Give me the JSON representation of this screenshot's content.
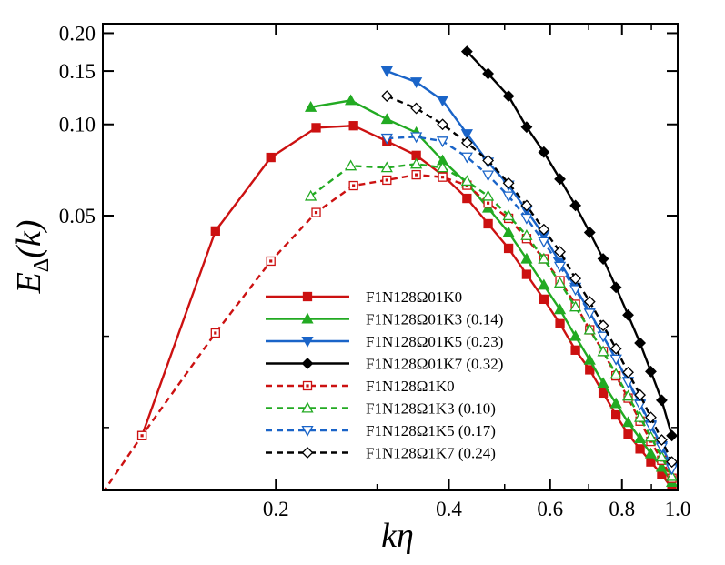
{
  "chart_data": {
    "type": "line",
    "title": "",
    "xlabel": "kη",
    "ylabel": "E_Δ(k)",
    "x_scale": "log",
    "y_scale": "log",
    "xlim": [
      0.1,
      1.0
    ],
    "ylim": [
      0.0062,
      0.215
    ],
    "x_ticks": [
      {
        "value": 0.2,
        "label": "0.2"
      },
      {
        "value": 0.4,
        "label": "0.4"
      },
      {
        "value": 0.6,
        "label": "0.6"
      },
      {
        "value": 0.8,
        "label": "0.8"
      },
      {
        "value": 1.0,
        "label": "1.0"
      }
    ],
    "x_minor_ticks": [
      0.3,
      0.5,
      0.7,
      0.9
    ],
    "y_ticks": [
      {
        "value": 0.05,
        "label": "0.05"
      },
      {
        "value": 0.1,
        "label": "0.10"
      },
      {
        "value": 0.15,
        "label": "0.15"
      },
      {
        "value": 0.2,
        "label": "0.20"
      }
    ],
    "y_minor_ticks": [
      0.02,
      0.01
    ],
    "grid": false,
    "legend_position": "lower-center",
    "series": [
      {
        "name": "F1N128Ω01K0",
        "color": "#cc1111",
        "dash": "solid",
        "marker": "square-filled",
        "x": [
          0.117,
          0.157,
          0.196,
          0.235,
          0.273,
          0.312,
          0.351,
          0.39,
          0.43,
          0.468,
          0.508,
          0.546,
          0.585,
          0.624,
          0.664,
          0.703,
          0.742,
          0.781,
          0.82,
          0.86,
          0.898,
          0.938,
          0.977
        ],
        "y": [
          0.0094,
          0.0445,
          0.0778,
          0.0975,
          0.099,
          0.088,
          0.079,
          0.068,
          0.057,
          0.047,
          0.039,
          0.032,
          0.0265,
          0.022,
          0.018,
          0.0155,
          0.013,
          0.011,
          0.0095,
          0.0085,
          0.0077,
          0.007,
          0.0063
        ]
      },
      {
        "name": "F1N128Ω01K3 (0.14)",
        "color": "#22aa22",
        "dash": "solid",
        "marker": "triangle-up-filled",
        "x": [
          0.23,
          0.27,
          0.312,
          0.351,
          0.39,
          0.43,
          0.468,
          0.508,
          0.546,
          0.585,
          0.624,
          0.664,
          0.703,
          0.742,
          0.781,
          0.82,
          0.86,
          0.898,
          0.938,
          0.977
        ],
        "y": [
          0.114,
          0.12,
          0.104,
          0.094,
          0.076,
          0.064,
          0.053,
          0.044,
          0.036,
          0.0295,
          0.0245,
          0.02,
          0.0167,
          0.014,
          0.012,
          0.0104,
          0.0092,
          0.0082,
          0.0074,
          0.0066
        ]
      },
      {
        "name": "F1N128Ω01K5 (0.23)",
        "color": "#1a64c8",
        "dash": "solid",
        "marker": "triangle-down-filled",
        "x": [
          0.312,
          0.351,
          0.39,
          0.43,
          0.468,
          0.508,
          0.546,
          0.585,
          0.624,
          0.664,
          0.703,
          0.742,
          0.781,
          0.82,
          0.86,
          0.898,
          0.938,
          0.977
        ],
        "y": [
          0.15,
          0.138,
          0.12,
          0.093,
          0.075,
          0.063,
          0.052,
          0.043,
          0.035,
          0.029,
          0.024,
          0.02,
          0.0168,
          0.0142,
          0.012,
          0.0102,
          0.0087,
          0.0074
        ]
      },
      {
        "name": "F1N128Ω01K7 (0.32)",
        "color": "#000000",
        "dash": "solid",
        "marker": "diamond-filled",
        "x": [
          0.43,
          0.468,
          0.508,
          0.546,
          0.585,
          0.624,
          0.664,
          0.703,
          0.742,
          0.781,
          0.82,
          0.86,
          0.898,
          0.938,
          0.977
        ],
        "y": [
          0.174,
          0.147,
          0.124,
          0.098,
          0.081,
          0.066,
          0.054,
          0.044,
          0.036,
          0.029,
          0.0235,
          0.019,
          0.0153,
          0.0123,
          0.0094
        ]
      },
      {
        "name": "F1N128Ω1K0",
        "color": "#cc1111",
        "dash": "dashed",
        "marker": "square-open",
        "x": [
          0.1,
          0.117,
          0.157,
          0.196,
          0.235,
          0.273,
          0.312,
          0.351,
          0.39,
          0.43,
          0.468,
          0.508,
          0.546,
          0.585,
          0.624,
          0.664,
          0.703,
          0.742,
          0.781,
          0.82,
          0.86,
          0.898,
          0.938,
          0.977
        ],
        "y": [
          0.0061,
          0.0094,
          0.0205,
          0.0354,
          0.0512,
          0.0628,
          0.0655,
          0.0682,
          0.067,
          0.063,
          0.055,
          0.049,
          0.042,
          0.036,
          0.0305,
          0.0255,
          0.021,
          0.0178,
          0.0148,
          0.0125,
          0.0105,
          0.009,
          0.0078,
          0.0068
        ]
      },
      {
        "name": "F1N128Ω1K3 (0.10)",
        "color": "#22aa22",
        "dash": "dashed",
        "marker": "triangle-up-open",
        "x": [
          0.23,
          0.27,
          0.312,
          0.351,
          0.39,
          0.43,
          0.468,
          0.508,
          0.546,
          0.585,
          0.624,
          0.664,
          0.703,
          0.742,
          0.781,
          0.82,
          0.86,
          0.898,
          0.938,
          0.977
        ],
        "y": [
          0.058,
          0.073,
          0.072,
          0.074,
          0.072,
          0.065,
          0.058,
          0.05,
          0.043,
          0.036,
          0.03,
          0.025,
          0.021,
          0.0178,
          0.015,
          0.0127,
          0.0108,
          0.0093,
          0.008,
          0.0069
        ]
      },
      {
        "name": "F1N128Ω1K5 (0.17)",
        "color": "#1a64c8",
        "dash": "dashed",
        "marker": "triangle-down-open",
        "x": [
          0.312,
          0.351,
          0.39,
          0.43,
          0.468,
          0.508,
          0.546,
          0.585,
          0.624,
          0.664,
          0.703,
          0.742,
          0.781,
          0.82,
          0.86,
          0.898,
          0.938,
          0.977
        ],
        "y": [
          0.09,
          0.091,
          0.088,
          0.078,
          0.068,
          0.058,
          0.049,
          0.041,
          0.034,
          0.0285,
          0.0238,
          0.02,
          0.0168,
          0.0141,
          0.0119,
          0.0101,
          0.0086,
          0.0073
        ]
      },
      {
        "name": "F1N128Ω1K7 (0.24)",
        "color": "#000000",
        "dash": "dashed",
        "marker": "diamond-open",
        "x": [
          0.312,
          0.351,
          0.39,
          0.43,
          0.468,
          0.508,
          0.546,
          0.585,
          0.624,
          0.664,
          0.703,
          0.742,
          0.781,
          0.82,
          0.86,
          0.898,
          0.938,
          0.977
        ],
        "y": [
          0.124,
          0.113,
          0.1,
          0.087,
          0.076,
          0.064,
          0.054,
          0.045,
          0.038,
          0.031,
          0.026,
          0.0217,
          0.0182,
          0.0152,
          0.0128,
          0.0108,
          0.0091,
          0.0077
        ]
      }
    ]
  }
}
